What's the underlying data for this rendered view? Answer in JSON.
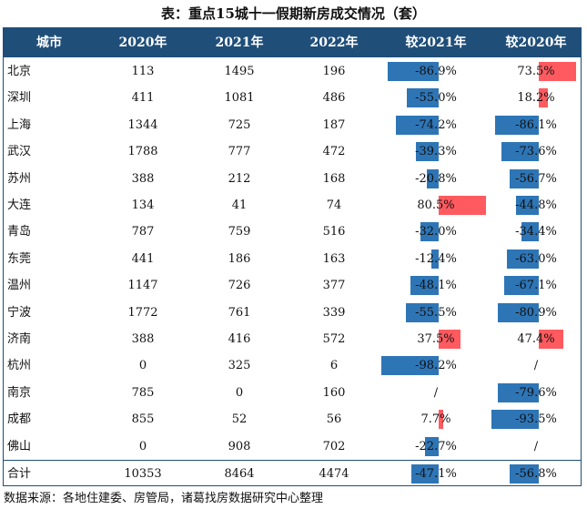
{
  "title": "表：重点15城十一假期新房成交情况（套）",
  "columns": [
    "城市",
    "2020年",
    "2021年",
    "2022年",
    "较2021年",
    "较2020年"
  ],
  "rows": [
    {
      "city": "北京",
      "y2020": "113",
      "y2021": "1495",
      "y2022": "196",
      "vs2021": "-86.9%",
      "vs2021_val": -86.9,
      "vs2020": "73.5%",
      "vs2020_val": 73.5
    },
    {
      "city": "深圳",
      "y2020": "411",
      "y2021": "1081",
      "y2022": "486",
      "vs2021": "-55.0%",
      "vs2021_val": -55.0,
      "vs2020": "18.2%",
      "vs2020_val": 18.2
    },
    {
      "city": "上海",
      "y2020": "1344",
      "y2021": "725",
      "y2022": "187",
      "vs2021": "-74.2%",
      "vs2021_val": -74.2,
      "vs2020": "-86.1%",
      "vs2020_val": -86.1
    },
    {
      "city": "武汉",
      "y2020": "1788",
      "y2021": "777",
      "y2022": "472",
      "vs2021": "-39.3%",
      "vs2021_val": -39.3,
      "vs2020": "-73.6%",
      "vs2020_val": -73.6
    },
    {
      "city": "苏州",
      "y2020": "388",
      "y2021": "212",
      "y2022": "168",
      "vs2021": "-20.8%",
      "vs2021_val": -20.8,
      "vs2020": "-56.7%",
      "vs2020_val": -56.7
    },
    {
      "city": "大连",
      "y2020": "134",
      "y2021": "41",
      "y2022": "74",
      "vs2021": "80.5%",
      "vs2021_val": 80.5,
      "vs2020": "-44.8%",
      "vs2020_val": -44.8
    },
    {
      "city": "青岛",
      "y2020": "787",
      "y2021": "759",
      "y2022": "516",
      "vs2021": "-32.0%",
      "vs2021_val": -32.0,
      "vs2020": "-34.4%",
      "vs2020_val": -34.4
    },
    {
      "city": "东莞",
      "y2020": "441",
      "y2021": "186",
      "y2022": "163",
      "vs2021": "-12.4%",
      "vs2021_val": -12.4,
      "vs2020": "-63.0%",
      "vs2020_val": -63.0
    },
    {
      "city": "温州",
      "y2020": "1147",
      "y2021": "726",
      "y2022": "377",
      "vs2021": "-48.1%",
      "vs2021_val": -48.1,
      "vs2020": "-67.1%",
      "vs2020_val": -67.1
    },
    {
      "city": "宁波",
      "y2020": "1772",
      "y2021": "761",
      "y2022": "339",
      "vs2021": "-55.5%",
      "vs2021_val": -55.5,
      "vs2020": "-80.9%",
      "vs2020_val": -80.9
    },
    {
      "city": "济南",
      "y2020": "388",
      "y2021": "416",
      "y2022": "572",
      "vs2021": "37.5%",
      "vs2021_val": 37.5,
      "vs2020": "47.4%",
      "vs2020_val": 47.4
    },
    {
      "city": "杭州",
      "y2020": "0",
      "y2021": "325",
      "y2022": "6",
      "vs2021": "-98.2%",
      "vs2021_val": -98.2,
      "vs2020": "/",
      "vs2020_val": null
    },
    {
      "city": "南京",
      "y2020": "785",
      "y2021": "0",
      "y2022": "160",
      "vs2021": "/",
      "vs2021_val": null,
      "vs2020": "-79.6%",
      "vs2020_val": -79.6
    },
    {
      "city": "成都",
      "y2020": "855",
      "y2021": "52",
      "y2022": "56",
      "vs2021": "7.7%",
      "vs2021_val": 7.7,
      "vs2020": "-93.5%",
      "vs2020_val": -93.5
    },
    {
      "city": "佛山",
      "y2020": "0",
      "y2021": "908",
      "y2022": "702",
      "vs2021": "-22.7%",
      "vs2021_val": -22.7,
      "vs2020": "/",
      "vs2020_val": null
    },
    {
      "city": "合计",
      "y2020": "10353",
      "y2021": "8464",
      "y2022": "4474",
      "vs2021": "-47.1%",
      "vs2021_val": -47.1,
      "vs2020": "-56.8%",
      "vs2020_val": -56.8
    }
  ],
  "colors": {
    "header_bg": "#1F4E79",
    "negative_bar": "#2E75B6",
    "positive_bar": "#FF5A5F"
  },
  "source": "数据来源：各地住建委、房管局，诸葛找房数据研究中心整理"
}
